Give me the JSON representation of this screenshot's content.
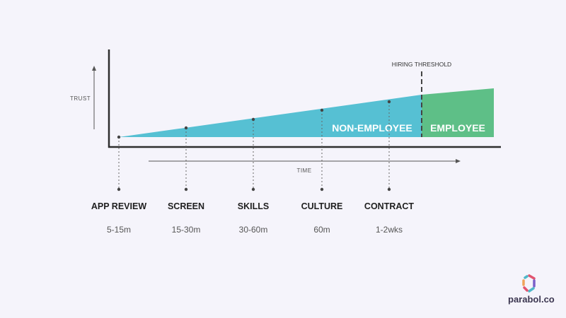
{
  "diagram": {
    "y_axis_label": "TRUST",
    "x_axis_label": "TIME",
    "threshold_label": "HIRING THRESHOLD",
    "regions": [
      {
        "label": "NON-EMPLOYEE",
        "color": "#56c0d3"
      },
      {
        "label": "EMPLOYEE",
        "color": "#5ebf87"
      }
    ],
    "stages": [
      {
        "name": "APP REVIEW",
        "duration": "5-15m"
      },
      {
        "name": "SCREEN",
        "duration": "15-30m"
      },
      {
        "name": "SKILLS",
        "duration": "30-60m"
      },
      {
        "name": "CULTURE",
        "duration": "60m"
      },
      {
        "name": "CONTRACT",
        "duration": "1-2wks"
      }
    ]
  },
  "brand": {
    "name": "parabol.co",
    "icon": "parabol-logo-icon"
  }
}
